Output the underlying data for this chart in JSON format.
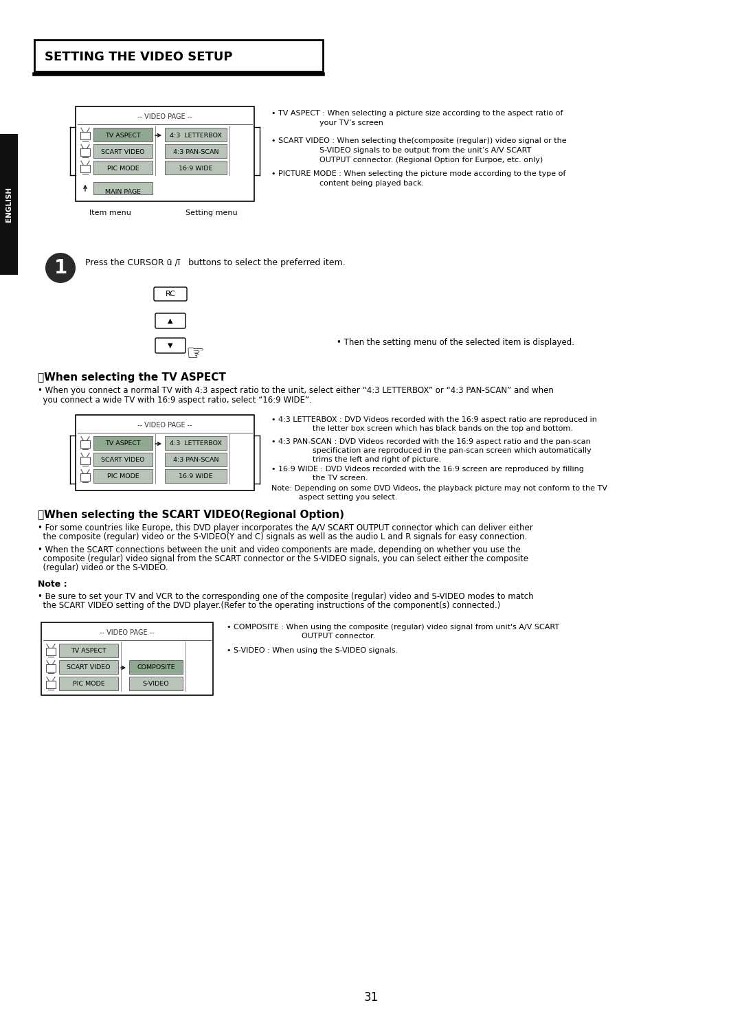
{
  "page_num": "31",
  "bg_color": "#ffffff",
  "title": "SETTING THE VIDEO SETUP",
  "english_label": "ENGLISH",
  "section1_heading": "艹When selecting the TV ASPECT",
  "section2_heading": "艹When selecting the SCART VIDEO(Regional Option)",
  "note_heading": "Note :",
  "step1_text": "Press the CURSOR ū /ī   buttons to select the preferred item.",
  "then_text": "• Then the setting menu of the selected item is displayed.",
  "bullet_intro_1": "• TV ASPECT : When selecting a picture size according to the aspect ratio of\n              your TV's screen",
  "bullet_intro_2": "• SCART VIDEO : When selecting the(composite (regular)) video signal or the\n              S-VIDEO signals to be output from the unit's A/V SCART\n              OUTPUT connector. (Regional Option for Eurpoe, etc. only)",
  "bullet_intro_3": "• PICTURE MODE : When selecting the picture mode according to the type of\n              content being played back.",
  "menu1_header": "-- VIDEO PAGE --",
  "menu1_items_left": [
    "TV ASPECT",
    "SCART VIDEO",
    "PIC MODE"
  ],
  "menu1_items_right": [
    "4:3  LETTERBOX",
    "4:3 PAN-SCAN",
    "16:9 WIDE"
  ],
  "menu1_selected": 0,
  "menu1_footer": "MAIN PAGE",
  "item_menu_label": "Item menu",
  "setting_menu_label": "Setting menu",
  "section1_bullet1": "• 4:3 LETTERBOX : DVD Videos recorded with the 16:9 aspect ratio are reproduced in\n              the letter box screen which has black bands on the top and bottom.",
  "section1_bullet2": "• 4:3 PAN-SCAN : DVD Videos recorded with the 16:9 aspect ratio and the pan-scan\n              specification are reproduced in the pan-scan screen which automatically\n              trims the left and right of picture.",
  "section1_bullet3": "• 16:9 WIDE : DVD Videos recorded with the 16:9 screen are reproduced by filling\n              the TV screen.",
  "section1_note": "Note: Depending on some DVD Videos, the playback picture may not conform to the TV\n              aspect setting you select.",
  "section1_para1_line1": "• When you connect a normal TV with 4:3 aspect ratio to the unit, select either “4:3 LETTERBOX” or “4:3 PAN-SCAN” and when",
  "section1_para1_line2": "  you connect a wide TV with 16:9 aspect ratio, select “16:9 WIDE”.",
  "section2_para1_line1": "• For some countries like Europe, this DVD player incorporates the A/V SCART OUTPUT connector which can deliver either",
  "section2_para1_line2": "  the composite (regular) video or the S-VIDEO(Y and C) signals as well as the audio L and R signals for easy connection.",
  "section2_para2_line1": "• When the SCART connections between the unit and video components are made, depending on whether you use the",
  "section2_para2_line2": "  composite (regular) video signal from the SCART connector or the S-VIDEO signals, you can select either the composite",
  "section2_para2_line3": "  (regular) video or the S-VIDEO.",
  "note_para1_line1": "• Be sure to set your TV and VCR to the corresponding one of the composite (regular) video and S-VIDEO modes to match",
  "note_para1_line2": "  the SCART VIDEO setting of the DVD player.(Refer to the operating instructions of the component(s) connected.)",
  "menu2_header": "-- VIDEO PAGE --",
  "menu2_items_left": [
    "TV ASPECT",
    "SCART VIDEO",
    "PIC MODE"
  ],
  "menu2_items_right": [
    "4:3  LETTERBOX",
    "4:3 PAN-SCAN",
    "16:9 WIDE"
  ],
  "menu3_header": "-- VIDEO PAGE --",
  "menu3_items_left": [
    "TV ASPECT",
    "SCART VIDEO",
    "PIC MODE"
  ],
  "menu3_right_sel": [
    "COMPOSITE",
    "S-VIDEO"
  ],
  "composite_bullet1": "• COMPOSITE : When using the composite (regular) video signal from unit's A/V SCART",
  "composite_bullet2": "              OUTPUT connector.",
  "svideo_bullet": "• S-VIDEO : When using the S-VIDEO signals.",
  "menu_bg": "#b8c4b8",
  "menu_selected_bg": "#8fa88f",
  "menu_header_color": "#333333"
}
